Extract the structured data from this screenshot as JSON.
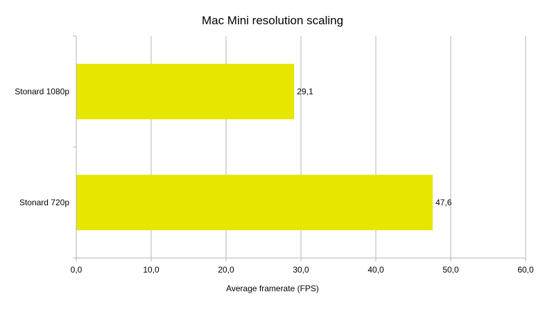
{
  "chart_data": {
    "type": "bar",
    "orientation": "horizontal",
    "title": "Mac Mini resolution scaling",
    "xlabel": "Average framerate (FPS)",
    "ylabel": "",
    "categories": [
      "Stonard 1080p",
      "Stonard 720p"
    ],
    "values": [
      29.1,
      47.6
    ],
    "value_labels": [
      "29,1",
      "47,6"
    ],
    "xlim": [
      0,
      60
    ],
    "x_ticks": [
      0,
      10,
      20,
      30,
      40,
      50,
      60
    ],
    "x_tick_labels": [
      "0,0",
      "10,0",
      "20,0",
      "30,0",
      "40,0",
      "50,0",
      "60,0"
    ],
    "grid": "vertical",
    "legend": "none",
    "bar_color": "#e6e600",
    "grid_color": "#b3b3b3"
  }
}
